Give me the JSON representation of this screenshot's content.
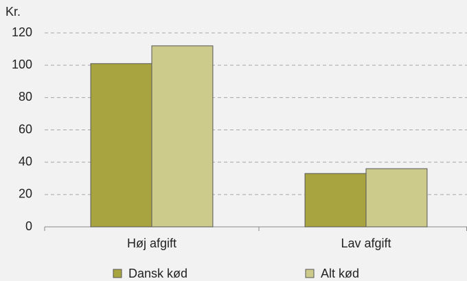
{
  "chart_data": {
    "type": "bar",
    "y_label": "Kr.",
    "categories": [
      "Høj afgift",
      "Lav afgift"
    ],
    "series": [
      {
        "name": "Dansk kød",
        "color": "#a8a43f",
        "values": [
          101,
          33
        ]
      },
      {
        "name": "Alt kød",
        "color": "#cdcb8c",
        "values": [
          112,
          36
        ]
      }
    ],
    "ylim": [
      0,
      120
    ],
    "yticks": [
      0,
      20,
      40,
      60,
      80,
      100,
      120
    ],
    "grid": true
  }
}
